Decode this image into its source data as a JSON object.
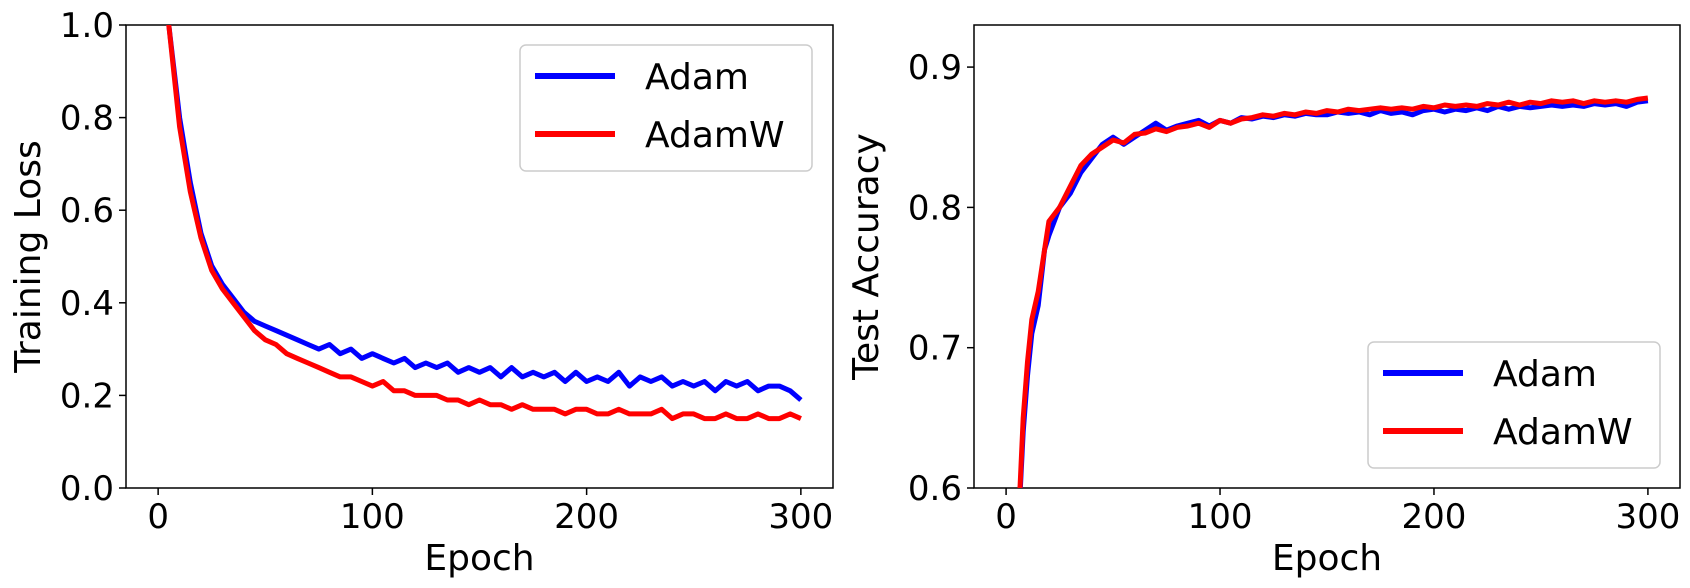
{
  "chart_data": [
    {
      "type": "line",
      "title": "",
      "xlabel": "Epoch",
      "ylabel": "Training Loss",
      "xlim": [
        -15,
        315
      ],
      "ylim": [
        0.0,
        1.0
      ],
      "xticks": [
        0,
        100,
        200,
        300
      ],
      "xtick_labels": [
        "0",
        "100",
        "200",
        "300"
      ],
      "yticks": [
        0.0,
        0.2,
        0.4,
        0.6,
        0.8,
        1.0
      ],
      "ytick_labels": [
        "0.0",
        "0.2",
        "0.4",
        "0.6",
        "0.8",
        "1.0"
      ],
      "legend_position": "top-right",
      "grid": false,
      "x": [
        0,
        5,
        10,
        15,
        20,
        25,
        30,
        35,
        40,
        45,
        50,
        55,
        60,
        65,
        70,
        75,
        80,
        85,
        90,
        95,
        100,
        105,
        110,
        115,
        120,
        125,
        130,
        135,
        140,
        145,
        150,
        155,
        160,
        165,
        170,
        175,
        180,
        185,
        190,
        195,
        200,
        205,
        210,
        215,
        220,
        225,
        230,
        235,
        240,
        245,
        250,
        255,
        260,
        265,
        270,
        275,
        280,
        285,
        290,
        295,
        300
      ],
      "series": [
        {
          "name": "Adam",
          "color": "#0000ff",
          "values": [
            1.05,
            1.0,
            0.8,
            0.66,
            0.55,
            0.48,
            0.44,
            0.41,
            0.38,
            0.36,
            0.35,
            0.34,
            0.33,
            0.32,
            0.31,
            0.3,
            0.31,
            0.29,
            0.3,
            0.28,
            0.29,
            0.28,
            0.27,
            0.28,
            0.26,
            0.27,
            0.26,
            0.27,
            0.25,
            0.26,
            0.25,
            0.26,
            0.24,
            0.26,
            0.24,
            0.25,
            0.24,
            0.25,
            0.23,
            0.25,
            0.23,
            0.24,
            0.23,
            0.25,
            0.22,
            0.24,
            0.23,
            0.24,
            0.22,
            0.23,
            0.22,
            0.23,
            0.21,
            0.23,
            0.22,
            0.23,
            0.21,
            0.22,
            0.22,
            0.21,
            0.19
          ]
        },
        {
          "name": "AdamW",
          "color": "#ff0000",
          "values": [
            1.05,
            1.0,
            0.78,
            0.64,
            0.54,
            0.47,
            0.43,
            0.4,
            0.37,
            0.34,
            0.32,
            0.31,
            0.29,
            0.28,
            0.27,
            0.26,
            0.25,
            0.24,
            0.24,
            0.23,
            0.22,
            0.23,
            0.21,
            0.21,
            0.2,
            0.2,
            0.2,
            0.19,
            0.19,
            0.18,
            0.19,
            0.18,
            0.18,
            0.17,
            0.18,
            0.17,
            0.17,
            0.17,
            0.16,
            0.17,
            0.17,
            0.16,
            0.16,
            0.17,
            0.16,
            0.16,
            0.16,
            0.17,
            0.15,
            0.16,
            0.16,
            0.15,
            0.15,
            0.16,
            0.15,
            0.15,
            0.16,
            0.15,
            0.15,
            0.16,
            0.15
          ]
        }
      ]
    },
    {
      "type": "line",
      "title": "",
      "xlabel": "Epoch",
      "ylabel": "Test Accuracy",
      "xlim": [
        -15,
        315
      ],
      "ylim": [
        0.6,
        0.93
      ],
      "xticks": [
        0,
        100,
        200,
        300
      ],
      "xtick_labels": [
        "0",
        "100",
        "200",
        "300"
      ],
      "yticks": [
        0.6,
        0.7,
        0.8,
        0.9
      ],
      "ytick_labels": [
        "0.6",
        "0.7",
        "0.8",
        "0.9"
      ],
      "legend_position": "bottom-right",
      "grid": false,
      "x": [
        5,
        8,
        10,
        12,
        15,
        18,
        20,
        25,
        30,
        35,
        40,
        45,
        50,
        55,
        60,
        65,
        70,
        75,
        80,
        85,
        90,
        95,
        100,
        105,
        110,
        115,
        120,
        125,
        130,
        135,
        140,
        145,
        150,
        155,
        160,
        165,
        170,
        175,
        180,
        185,
        190,
        195,
        200,
        205,
        210,
        215,
        220,
        225,
        230,
        235,
        240,
        245,
        250,
        255,
        260,
        265,
        270,
        275,
        280,
        285,
        290,
        295,
        300
      ],
      "series": [
        {
          "name": "Adam",
          "color": "#0000ff",
          "values": [
            0.55,
            0.64,
            0.68,
            0.71,
            0.73,
            0.77,
            0.78,
            0.8,
            0.81,
            0.825,
            0.835,
            0.845,
            0.85,
            0.845,
            0.85,
            0.855,
            0.86,
            0.855,
            0.858,
            0.86,
            0.862,
            0.858,
            0.862,
            0.86,
            0.864,
            0.863,
            0.865,
            0.864,
            0.866,
            0.865,
            0.867,
            0.866,
            0.866,
            0.868,
            0.867,
            0.868,
            0.866,
            0.869,
            0.867,
            0.868,
            0.866,
            0.869,
            0.87,
            0.868,
            0.87,
            0.869,
            0.871,
            0.869,
            0.872,
            0.87,
            0.872,
            0.871,
            0.872,
            0.873,
            0.872,
            0.873,
            0.872,
            0.874,
            0.873,
            0.874,
            0.872,
            0.875,
            0.876
          ]
        },
        {
          "name": "AdamW",
          "color": "#ff0000",
          "values": [
            0.55,
            0.65,
            0.69,
            0.72,
            0.74,
            0.77,
            0.79,
            0.8,
            0.815,
            0.83,
            0.838,
            0.843,
            0.848,
            0.846,
            0.852,
            0.853,
            0.856,
            0.854,
            0.857,
            0.858,
            0.86,
            0.857,
            0.862,
            0.86,
            0.863,
            0.864,
            0.866,
            0.865,
            0.867,
            0.866,
            0.868,
            0.867,
            0.869,
            0.868,
            0.87,
            0.869,
            0.87,
            0.871,
            0.87,
            0.871,
            0.87,
            0.872,
            0.871,
            0.873,
            0.872,
            0.873,
            0.872,
            0.874,
            0.873,
            0.875,
            0.873,
            0.875,
            0.874,
            0.876,
            0.875,
            0.876,
            0.874,
            0.876,
            0.875,
            0.876,
            0.875,
            0.877,
            0.878
          ]
        }
      ]
    }
  ]
}
